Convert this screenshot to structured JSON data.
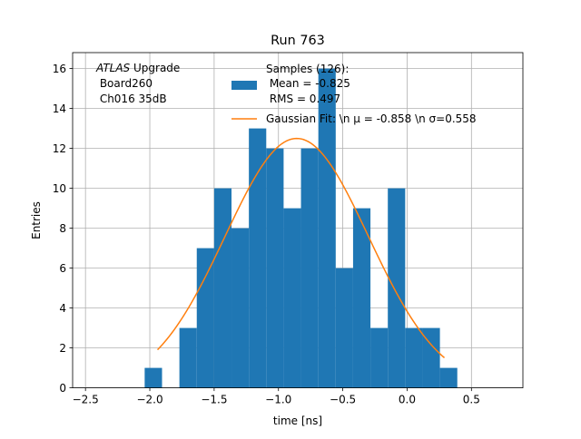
{
  "chart_data": {
    "type": "bar",
    "title": "Run 763",
    "xlabel": "time [ns]",
    "ylabel": "Entries",
    "xlim": [
      -2.6,
      0.9
    ],
    "ylim": [
      0,
      16.8
    ],
    "xticks": [
      -2.5,
      -2.0,
      -1.5,
      -1.0,
      -0.5,
      0.0,
      0.5
    ],
    "xtick_labels": [
      "−2.5",
      "−2.0",
      "−1.5",
      "−1.0",
      "−0.5",
      "0.0",
      "0.5"
    ],
    "yticks": [
      0,
      2,
      4,
      6,
      8,
      10,
      12,
      14,
      16
    ],
    "ytick_labels": [
      "0",
      "2",
      "4",
      "6",
      "8",
      "10",
      "12",
      "14",
      "16"
    ],
    "grid": true,
    "legend_position": "top-right",
    "annotation": {
      "prefix_italic": "ATLAS",
      "prefix_rest": " Upgrade",
      "line2": " Board260",
      "line3": " Ch016 35dB"
    },
    "histogram": {
      "name": "Samples (126):",
      "name_lines": [
        "Samples (126):",
        " Mean = -0.825",
        " RMS = 0.497"
      ],
      "color": "#1f77b4",
      "bin_edges": [
        -2.04,
        -1.905,
        -1.77,
        -1.635,
        -1.5,
        -1.365,
        -1.23,
        -1.095,
        -0.96,
        -0.825,
        -0.69,
        -0.555,
        -0.42,
        -0.285,
        -0.15,
        -0.015,
        0.12,
        0.255,
        0.39
      ],
      "counts": [
        1,
        0,
        3,
        7,
        10,
        8,
        13,
        12,
        9,
        12,
        16,
        6,
        9,
        3,
        10,
        3,
        3,
        1
      ]
    },
    "fit": {
      "name": "Gaussian Fit: \\n μ = -0.858 \\n σ=0.558",
      "color": "#ff7f0e",
      "amplitude": 12.5,
      "mu": -0.858,
      "sigma": 0.558,
      "x_range": [
        -1.94,
        0.29
      ]
    }
  }
}
